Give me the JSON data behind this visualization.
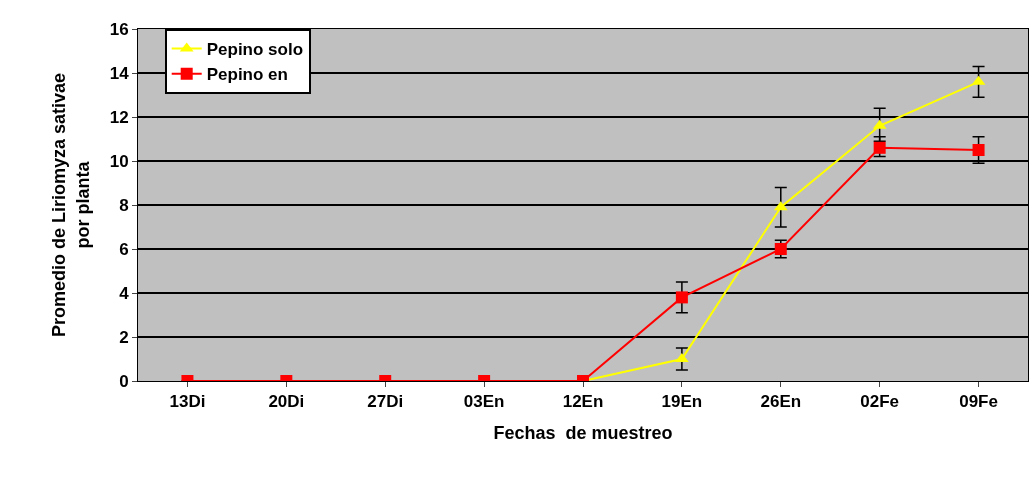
{
  "chart_data": {
    "type": "line",
    "xlabel": "Fechas  de muestreo",
    "ylabel": "Promedio de Liriomyza sativae\npor planta",
    "categories": [
      "13Di",
      "20Di",
      "27Di",
      "03En",
      "12En",
      "19En",
      "26En",
      "02Fe",
      "09Fe"
    ],
    "series": [
      {
        "name": "Pepino solo",
        "color": "#ffff00",
        "marker": "triangle",
        "values": [
          null,
          null,
          null,
          null,
          0,
          1.0,
          7.9,
          11.6,
          13.6
        ],
        "errors": [
          null,
          null,
          null,
          null,
          null,
          [
            0.5,
            1.5
          ],
          [
            7.0,
            8.8
          ],
          [
            10.9,
            12.4
          ],
          [
            12.9,
            14.3
          ]
        ]
      },
      {
        "name": "Pepino en",
        "color": "#ff0000",
        "marker": "square",
        "values": [
          0,
          0,
          0,
          0,
          0,
          3.8,
          6.0,
          10.6,
          10.5
        ],
        "errors": [
          null,
          null,
          null,
          null,
          null,
          [
            3.1,
            4.5
          ],
          [
            5.6,
            6.4
          ],
          [
            10.2,
            11.1
          ],
          [
            9.9,
            11.1
          ]
        ]
      }
    ],
    "ylim": [
      0,
      16
    ],
    "yticks": [
      0,
      2,
      4,
      6,
      8,
      10,
      12,
      14,
      16
    ],
    "grid": "y",
    "legend": "top left",
    "line_style": "solid"
  }
}
